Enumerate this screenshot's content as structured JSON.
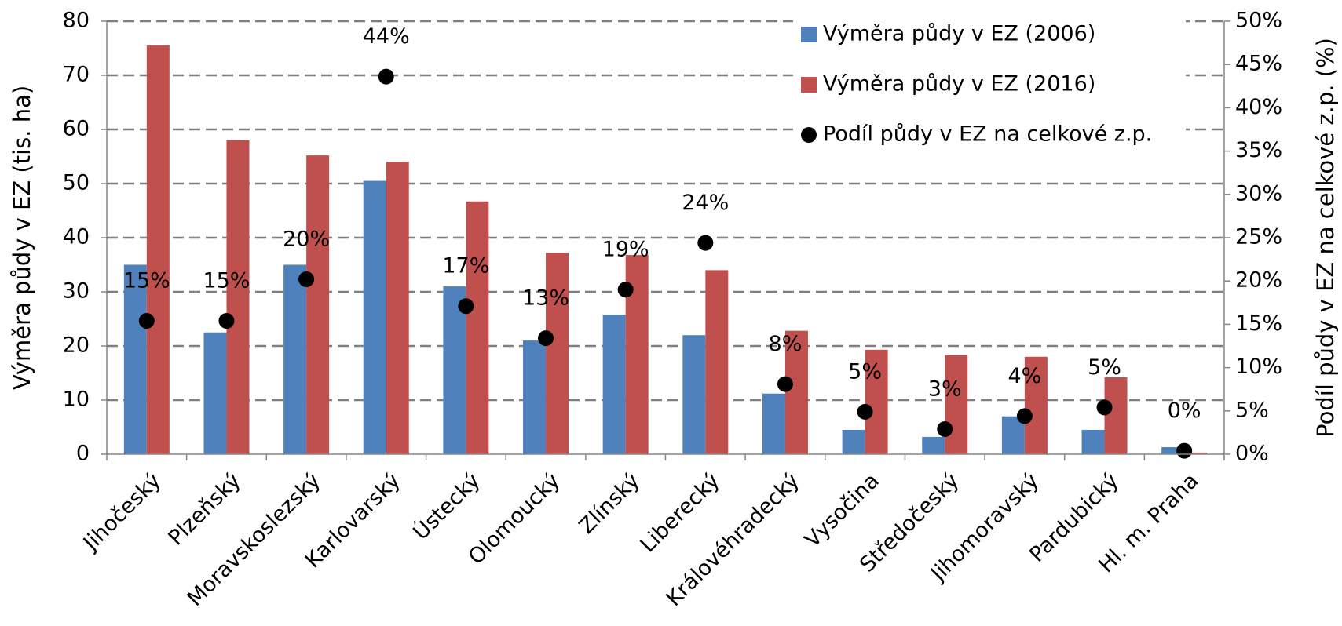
{
  "chart_data": {
    "type": "bar+scatter",
    "categories": [
      "Jihočeský",
      "Plzeňský",
      "Moravskoslezský",
      "Karlovarský",
      "Ústecký",
      "Olomoucký",
      "Zlínský",
      "Liberecký",
      "Královéhradecký",
      "Vysočina",
      "Středočeský",
      "Jihomoravský",
      "Pardubický",
      "Hl. m. Praha"
    ],
    "series": [
      {
        "name": "Výměra půdy v EZ (2006)",
        "color": "#4f81bd",
        "kind": "bar",
        "values": [
          35,
          22.5,
          35,
          50.5,
          31,
          21,
          25.8,
          22,
          11.2,
          4.5,
          3.2,
          7,
          4.5,
          1.3
        ]
      },
      {
        "name": "Výměra půdy v EZ (2016)",
        "color": "#c0504d",
        "kind": "bar",
        "values": [
          75.5,
          58,
          55.2,
          54,
          46.7,
          37.2,
          36.8,
          34,
          22.8,
          19.3,
          18.3,
          18,
          14.2,
          0.3
        ]
      },
      {
        "name": "Podíl půdy v EZ na celkové z.p.",
        "color": "#000000",
        "kind": "scatter",
        "axis": "y2",
        "values": [
          15.4,
          15.4,
          20.2,
          43.6,
          17.1,
          13.4,
          19,
          24.4,
          8.1,
          4.9,
          2.9,
          4.4,
          5.4,
          0.4
        ],
        "value_labels": [
          "15%",
          "15%",
          "20%",
          "44%",
          "17%",
          "13%",
          "19%",
          "24%",
          "8%",
          "5%",
          "3%",
          "4%",
          "5%",
          "0%"
        ]
      }
    ],
    "y_label": "Výměra půdy v EZ (tis. ha)",
    "y2_label": "Podíl půdy v EZ na celkové z.p. (%)",
    "ylim": [
      0,
      80
    ],
    "yticks": [
      0,
      10,
      20,
      30,
      40,
      50,
      60,
      70,
      80
    ],
    "y2lim": [
      0,
      50
    ],
    "y2ticks": [
      {
        "value": 0,
        "label": "0%"
      },
      {
        "value": 5,
        "label": "5%"
      },
      {
        "value": 10,
        "label": "10%"
      },
      {
        "value": 15,
        "label": "15%"
      },
      {
        "value": 20,
        "label": "20%"
      },
      {
        "value": 25,
        "label": "25%"
      },
      {
        "value": 30,
        "label": "30%"
      },
      {
        "value": 35,
        "label": "35%"
      },
      {
        "value": 40,
        "label": "40%"
      },
      {
        "value": 45,
        "label": "45%"
      },
      {
        "value": 50,
        "label": "50%"
      }
    ],
    "grid": true,
    "legend": "upper right"
  }
}
